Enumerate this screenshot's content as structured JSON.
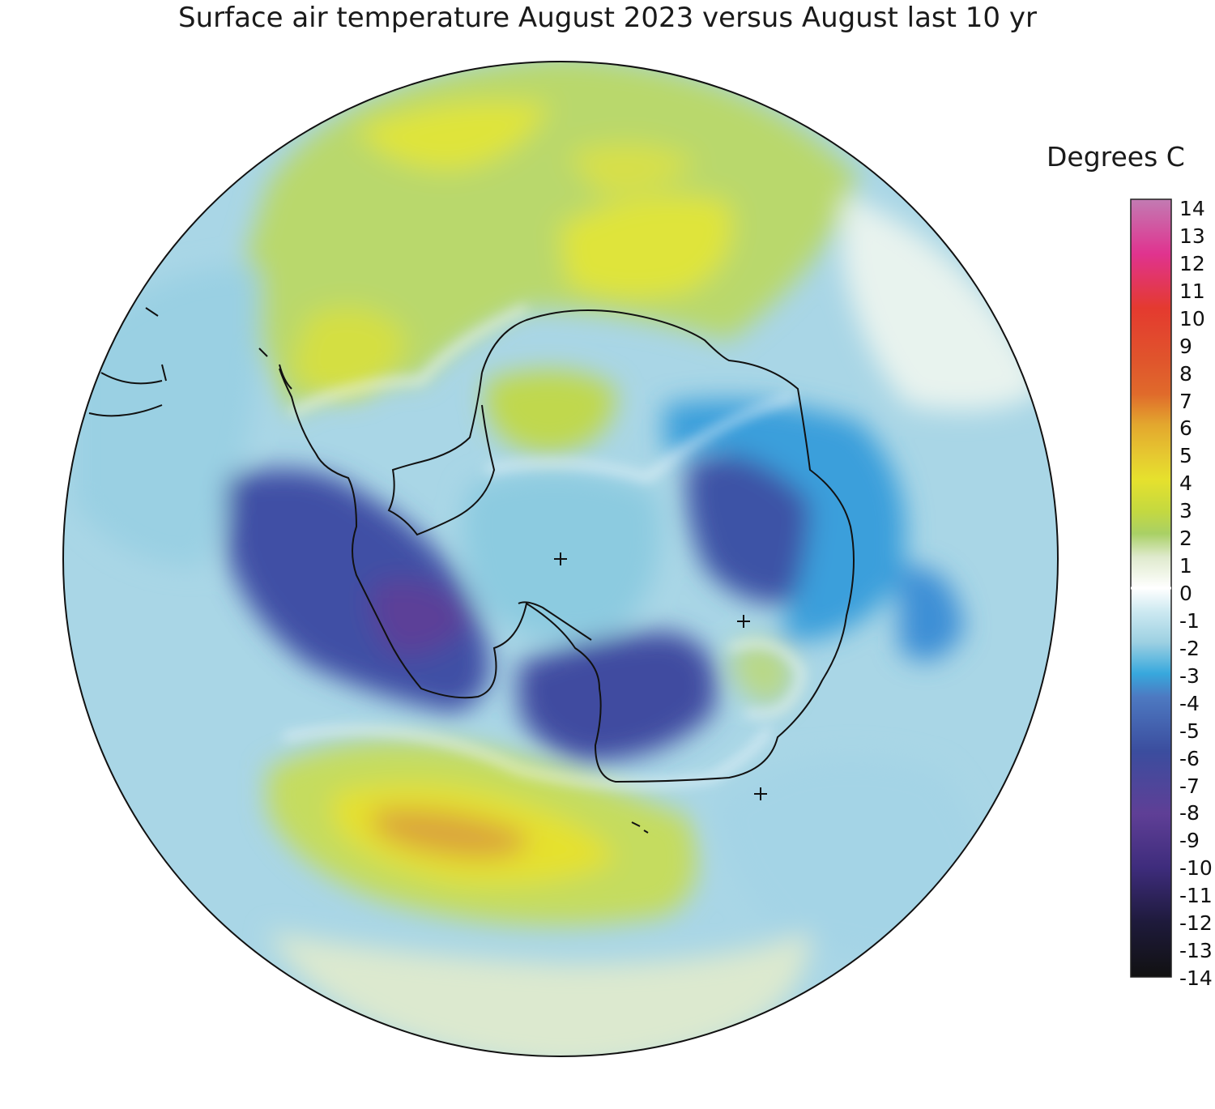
{
  "title": "Surface air temperature August 2023 versus August last 10 yr",
  "legend": {
    "title": "Degrees C",
    "ticks": [
      "14",
      "13",
      "12",
      "11",
      "10",
      "9",
      "8",
      "7",
      "6",
      "5",
      "4",
      "3",
      "2",
      "1",
      "0",
      "-1",
      "-2",
      "-3",
      "-4",
      "-5",
      "-6",
      "-7",
      "-8",
      "-9",
      "-10",
      "-11",
      "-12",
      "-13",
      "-14"
    ],
    "range": [
      -14,
      14
    ],
    "colors": {
      "14": "#c27bb3",
      "12": "#e0338f",
      "10": "#e43a2f",
      "8": "#e06a2b",
      "6": "#e3a72e",
      "4": "#e6e12d",
      "2": "#a9d065",
      "1": "#dfeacd",
      "0": "#ffffff",
      "-1": "#cde9f1",
      "-2": "#9cd0e2",
      "-3": "#37a8dd",
      "-4": "#4d79c1",
      "-6": "#3b4d9e",
      "-8": "#5f3f96",
      "-10": "#3e2c7c",
      "-12": "#1e1a3b",
      "-14": "#111111"
    }
  },
  "map": {
    "projection": "south-polar-stereographic",
    "region": "Antarctica and Southern Ocean",
    "markers": [
      "plus-marker",
      "plus-marker",
      "plus-marker"
    ]
  }
}
